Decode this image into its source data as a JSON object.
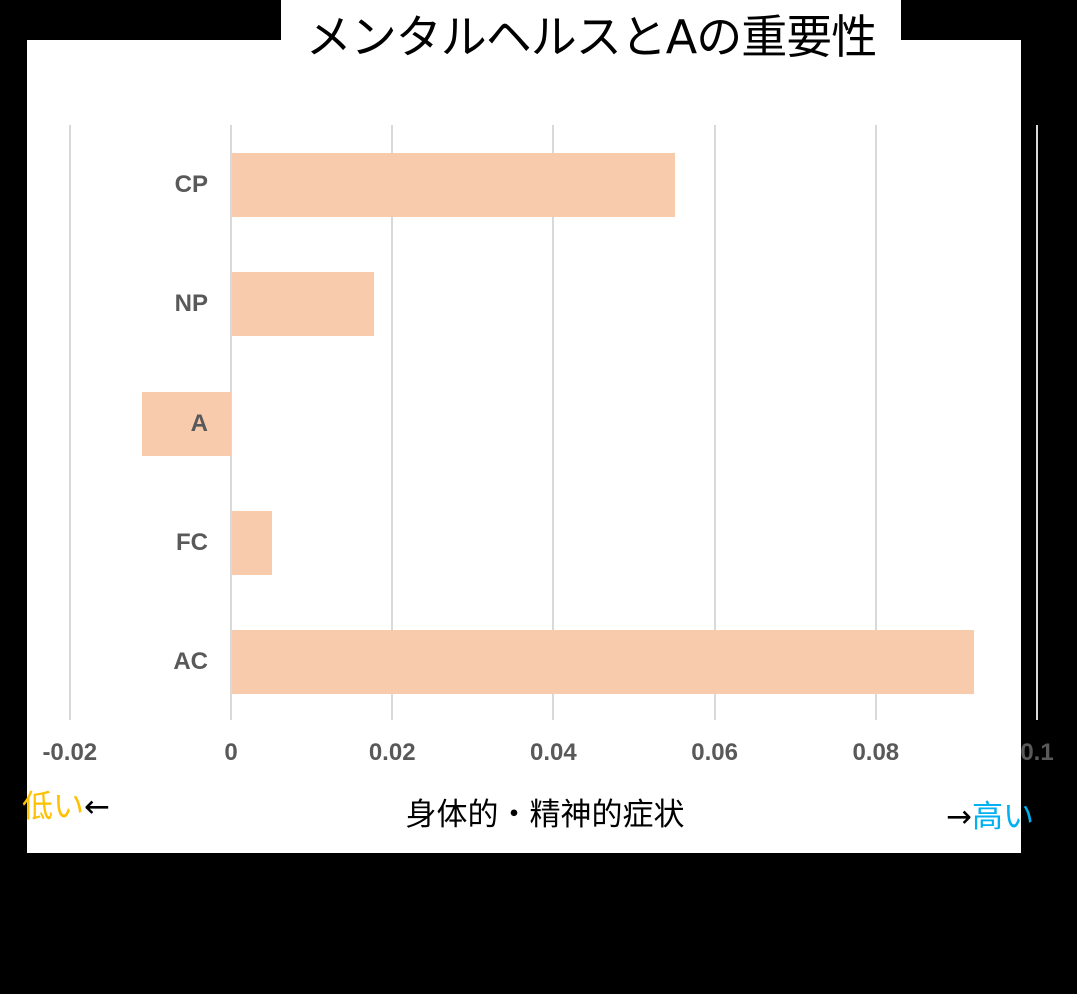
{
  "title": "メンタルヘルスとAの重要性",
  "xlabel": "身体的・精神的症状",
  "low_label": "低い",
  "low_arrow": "←",
  "high_label": "高い",
  "high_arrow": "→",
  "colors": {
    "bar": "#f7cbac",
    "low": "#ffc000",
    "high": "#00b0f0",
    "grid": "#d9d9d9",
    "tick": "#595959"
  },
  "ticks": [
    "-0.02",
    "0",
    "0.02",
    "0.04",
    "0.06",
    "0.08",
    "0.1"
  ],
  "categories": [
    "CP",
    "NP",
    "A",
    "FC",
    "AC"
  ],
  "chart_data": {
    "type": "bar",
    "orientation": "horizontal",
    "title": "メンタルヘルスとAの重要性",
    "xlabel": "身体的・精神的症状",
    "ylabel": "",
    "categories": [
      "CP",
      "NP",
      "A",
      "FC",
      "AC"
    ],
    "values": [
      0.055,
      0.0176,
      -0.011,
      0.005,
      0.092
    ],
    "xlim": [
      -0.02,
      0.1
    ],
    "xticks": [
      -0.02,
      0,
      0.02,
      0.04,
      0.06,
      0.08,
      0.1
    ],
    "grid": true,
    "legend": null,
    "annotations": [
      "低い←",
      "→高い"
    ]
  }
}
